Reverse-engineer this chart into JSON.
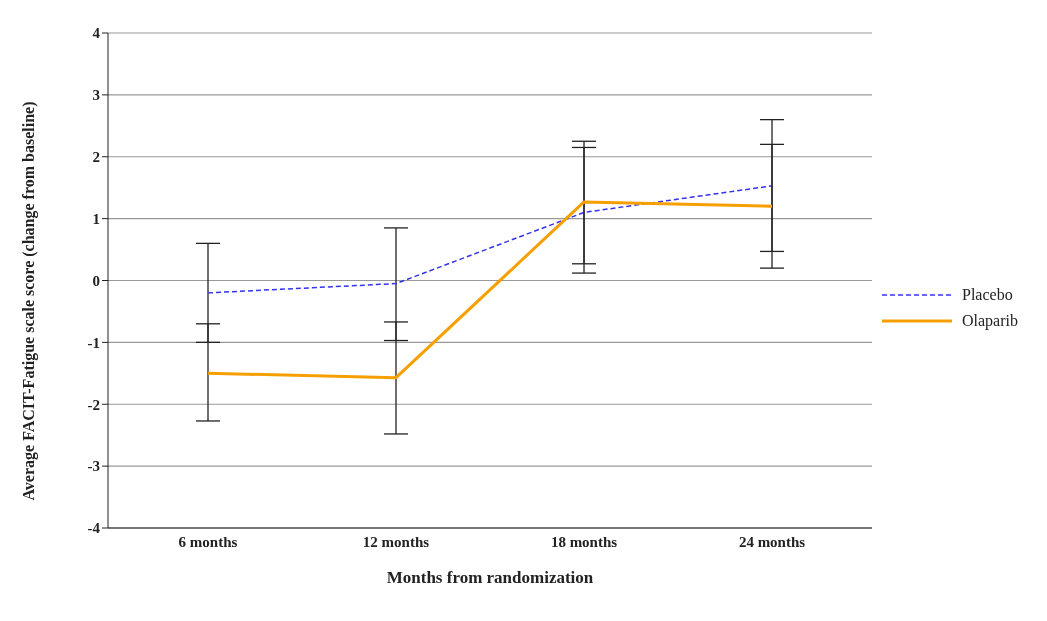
{
  "chart_data": {
    "type": "line",
    "xlabel": "Months from randomization",
    "ylabel": "Average FACIT-Fatigue scale score (change from baseline)",
    "categories": [
      "6 months",
      "12 months",
      "18 months",
      "24 months"
    ],
    "series": [
      {
        "name": "Placebo",
        "color": "#3333ee",
        "line_style": "dashed",
        "values": [
          -0.2,
          -0.05,
          1.1,
          1.53
        ],
        "errors": [
          [
            -1.0,
            0.6
          ],
          [
            -0.97,
            0.85
          ],
          [
            0.12,
            2.15
          ],
          [
            0.47,
            2.6
          ]
        ]
      },
      {
        "name": "Olaparib",
        "color": "#f5a000",
        "line_style": "solid",
        "values": [
          -1.5,
          -1.57,
          1.27,
          1.2
        ],
        "errors": [
          [
            -2.27,
            -0.7
          ],
          [
            -2.48,
            -0.67
          ],
          [
            0.27,
            2.25
          ],
          [
            0.2,
            2.2
          ]
        ]
      }
    ],
    "ylim": [
      -4,
      4
    ],
    "yticks": [
      -4,
      -3,
      -2,
      -1,
      0,
      1,
      2,
      3,
      4
    ],
    "grid": "y",
    "legend": "right",
    "marker": "none"
  }
}
